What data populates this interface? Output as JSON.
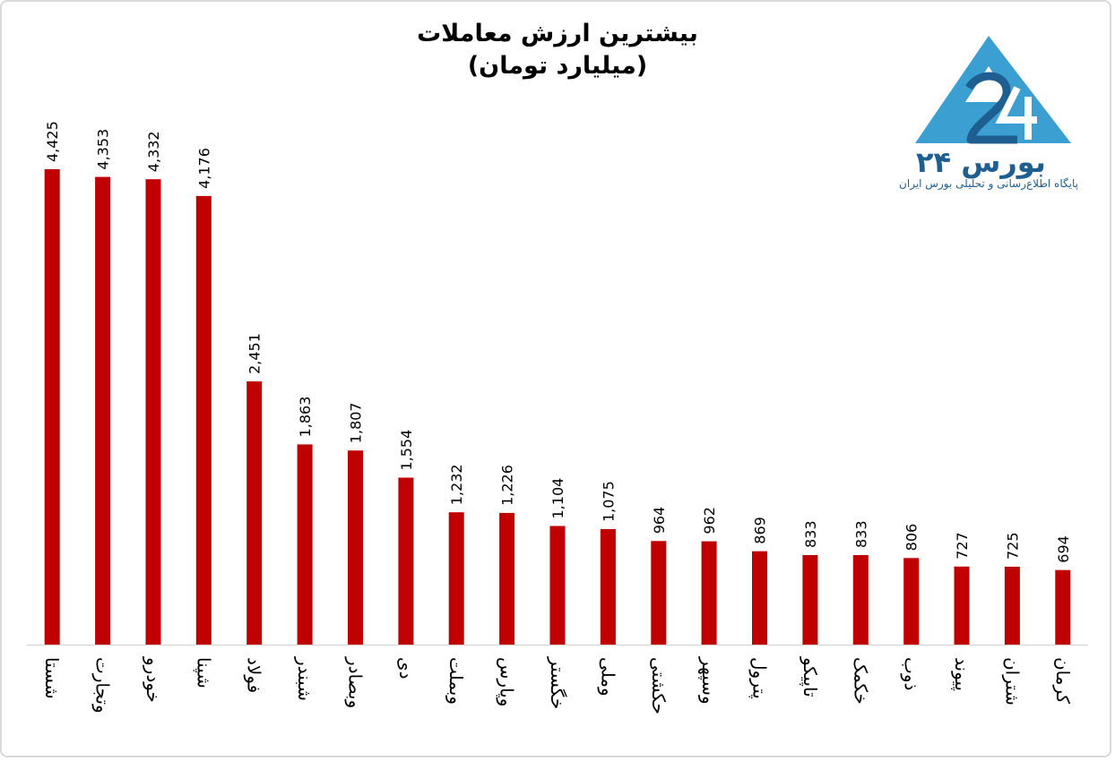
{
  "title": {
    "line1": "بیشترین ارزش معاملات",
    "line2": "(میلیارد تومان)"
  },
  "logo": {
    "brand": "بورس ۲۴",
    "tagline": "پایگاه اطلاع‌رسانی و تحلیلی بورس ایران",
    "colors": {
      "light": "#3b9fd1",
      "dark": "#1f5e91"
    }
  },
  "chart_data": {
    "type": "bar",
    "title": "بیشترین ارزش معاملات (میلیارد تومان)",
    "categories": [
      "شستا",
      "وتجارت",
      "خودرو",
      "شپنا",
      "فولاد",
      "شبندر",
      "وبصادر",
      "دی",
      "وبملت",
      "وپارس",
      "خگستر",
      "وملی",
      "حکشتی",
      "وسپهر",
      "پترول",
      "تاپیکو",
      "خکمک",
      "ذوب",
      "پیوند",
      "شتران",
      "کرمان"
    ],
    "values": [
      4425,
      4353,
      4332,
      4176,
      2451,
      1863,
      1807,
      1554,
      1232,
      1226,
      1104,
      1075,
      964,
      962,
      869,
      833,
      833,
      806,
      727,
      725,
      694
    ],
    "labels": [
      "4,425",
      "4,353",
      "4,332",
      "4,176",
      "2,451",
      "1,863",
      "1,807",
      "1,554",
      "1,232",
      "1,226",
      "1,104",
      "1,075",
      "964",
      "962",
      "869",
      "833",
      "833",
      "806",
      "727",
      "725",
      "694"
    ],
    "bar_color": "#c00000",
    "ylim": [
      0,
      4425
    ],
    "grid": false,
    "legend": "none",
    "xlabel": "",
    "ylabel": ""
  }
}
